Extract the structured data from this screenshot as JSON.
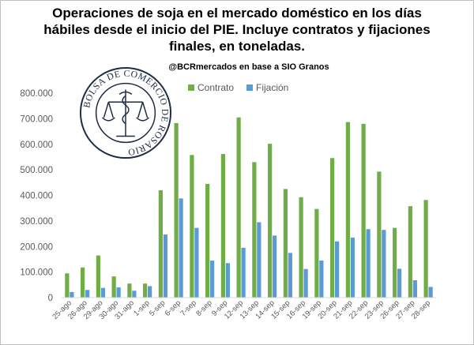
{
  "title": "Operaciones de soja en el mercado doméstico en los días hábiles desde el inicio del PIE. Incluye contratos y fijaciones finales, en toneladas.",
  "subtitle": "@BCRmercados en base a SIO Granos",
  "logo_text": "BOLSA DE COMERCIO DE ROSARIO",
  "colors": {
    "contrato": "#70ad47",
    "fijacion": "#5b9bd5",
    "text": "#595959"
  },
  "chart_data": {
    "type": "bar",
    "title": "Operaciones de soja en el mercado doméstico en los días hábiles desde el inicio del PIE. Incluye contratos y fijaciones finales, en toneladas.",
    "xlabel": "",
    "ylabel": "",
    "ylim": [
      0,
      800000
    ],
    "yticks": [
      0,
      100000,
      200000,
      300000,
      400000,
      500000,
      600000,
      700000,
      800000
    ],
    "ytick_labels": [
      "0",
      "100.000",
      "200.000",
      "300.000",
      "400.000",
      "500.000",
      "600.000",
      "700.000",
      "800.000"
    ],
    "grid": false,
    "legend": "top",
    "categories": [
      "25-ago",
      "26-ago",
      "29-ago",
      "30-ago",
      "31-ago",
      "1-sep",
      "5-sep",
      "6-sep",
      "7-sep",
      "8-sep",
      "9-sep",
      "12-sep",
      "13-sep",
      "14-sep",
      "15-sep",
      "16-sep",
      "19-sep",
      "20-sep",
      "21-sep",
      "22-sep",
      "23-sep",
      "26-sep",
      "27-sep",
      "28-sep"
    ],
    "series": [
      {
        "name": "Contrato",
        "values": [
          95000,
          118000,
          165000,
          83000,
          55000,
          55000,
          420000,
          683000,
          558000,
          445000,
          562000,
          705000,
          530000,
          602000,
          425000,
          393000,
          347000,
          546000,
          687000,
          680000,
          493000,
          273000,
          358000,
          382000
        ]
      },
      {
        "name": "Fijación",
        "values": [
          22000,
          30000,
          38000,
          40000,
          27000,
          45000,
          247000,
          388000,
          273000,
          145000,
          135000,
          195000,
          295000,
          243000,
          175000,
          112000,
          145000,
          220000,
          235000,
          268000,
          265000,
          113000,
          68000,
          42000
        ]
      }
    ]
  }
}
